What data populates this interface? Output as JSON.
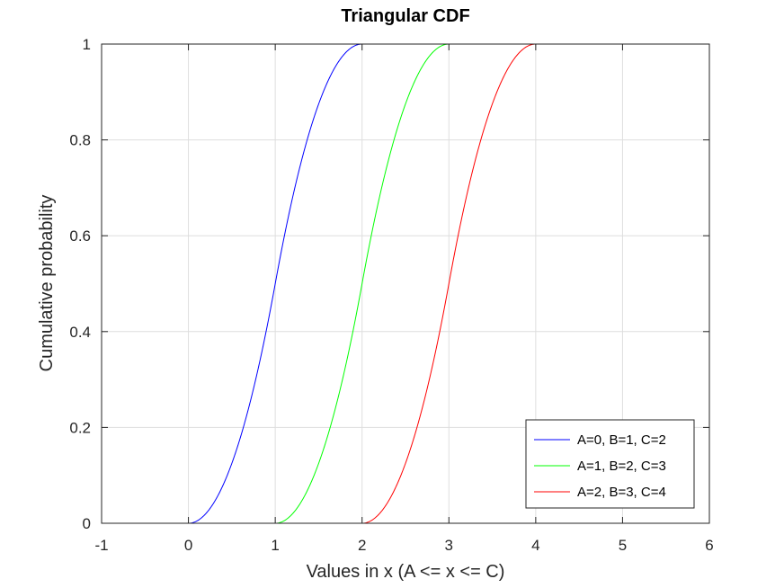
{
  "chart_data": {
    "type": "line",
    "title": "Triangular CDF",
    "xlabel": "Values in x (A <= x <= C)",
    "ylabel": "Cumulative probability",
    "xlim": [
      -1,
      6
    ],
    "ylim": [
      0,
      1
    ],
    "xticks": [
      -1,
      0,
      1,
      2,
      3,
      4,
      5,
      6
    ],
    "yticks": [
      0,
      0.2,
      0.4,
      0.6,
      0.8,
      1
    ],
    "xtick_labels": [
      "-1",
      "0",
      "1",
      "2",
      "3",
      "4",
      "5",
      "6"
    ],
    "ytick_labels": [
      "0",
      "0.2",
      "0.4",
      "0.6",
      "0.8",
      "1"
    ],
    "grid": true,
    "legend_position": "bottom-right",
    "series": [
      {
        "name": "A=0, B=1, C=2",
        "A": 0,
        "B": 1,
        "C": 2,
        "color": "#0000ff"
      },
      {
        "name": "A=1, B=2, C=3",
        "A": 1,
        "B": 2,
        "C": 3,
        "color": "#00ff00"
      },
      {
        "name": "A=2, B=3, C=4",
        "A": 2,
        "B": 3,
        "C": 4,
        "color": "#ff0000"
      }
    ]
  }
}
